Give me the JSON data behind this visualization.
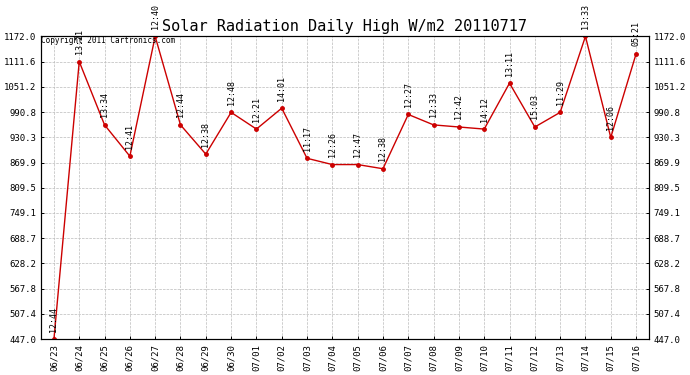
{
  "title": "Solar Radiation Daily High W/m2 20110717",
  "copyright_text": "Copyright 2011 Cartronics.com",
  "x_labels": [
    "06/23",
    "06/24",
    "06/25",
    "06/26",
    "06/27",
    "06/28",
    "06/29",
    "06/30",
    "07/01",
    "07/02",
    "07/03",
    "07/04",
    "07/05",
    "07/06",
    "07/07",
    "07/08",
    "07/09",
    "07/10",
    "07/11",
    "07/12",
    "07/13",
    "07/14",
    "07/15",
    "07/16"
  ],
  "y_values": [
    447.0,
    1111.6,
    960.0,
    885.0,
    1172.0,
    960.0,
    890.0,
    990.0,
    950.0,
    1000.0,
    880.0,
    865.0,
    865.0,
    855.0,
    985.0,
    960.0,
    955.0,
    950.0,
    1060.0,
    955.0,
    990.0,
    1172.0,
    930.0,
    1130.0
  ],
  "time_labels": [
    "12:44",
    "13:21",
    "13:34",
    "12:41",
    "12:40",
    "12:44",
    "12:38",
    "12:48",
    "12:21",
    "14:01",
    "11:17",
    "12:26",
    "12:47",
    "12:38",
    "12:27",
    "12:33",
    "12:42",
    "14:12",
    "13:11",
    "15:03",
    "11:29",
    "13:33",
    "12:06",
    "05:21"
  ],
  "ylim_min": 447.0,
  "ylim_max": 1172.0,
  "y_ticks": [
    447.0,
    507.4,
    567.8,
    628.2,
    688.7,
    749.1,
    809.5,
    869.9,
    930.3,
    990.8,
    1051.2,
    1111.6,
    1172.0
  ],
  "line_color": "#cc0000",
  "marker_color": "#cc0000",
  "bg_color": "#ffffff",
  "plot_bg_color": "#ffffff",
  "grid_color": "#bbbbbb",
  "title_fontsize": 11,
  "tick_fontsize": 6.5,
  "anno_fontsize": 6.0
}
